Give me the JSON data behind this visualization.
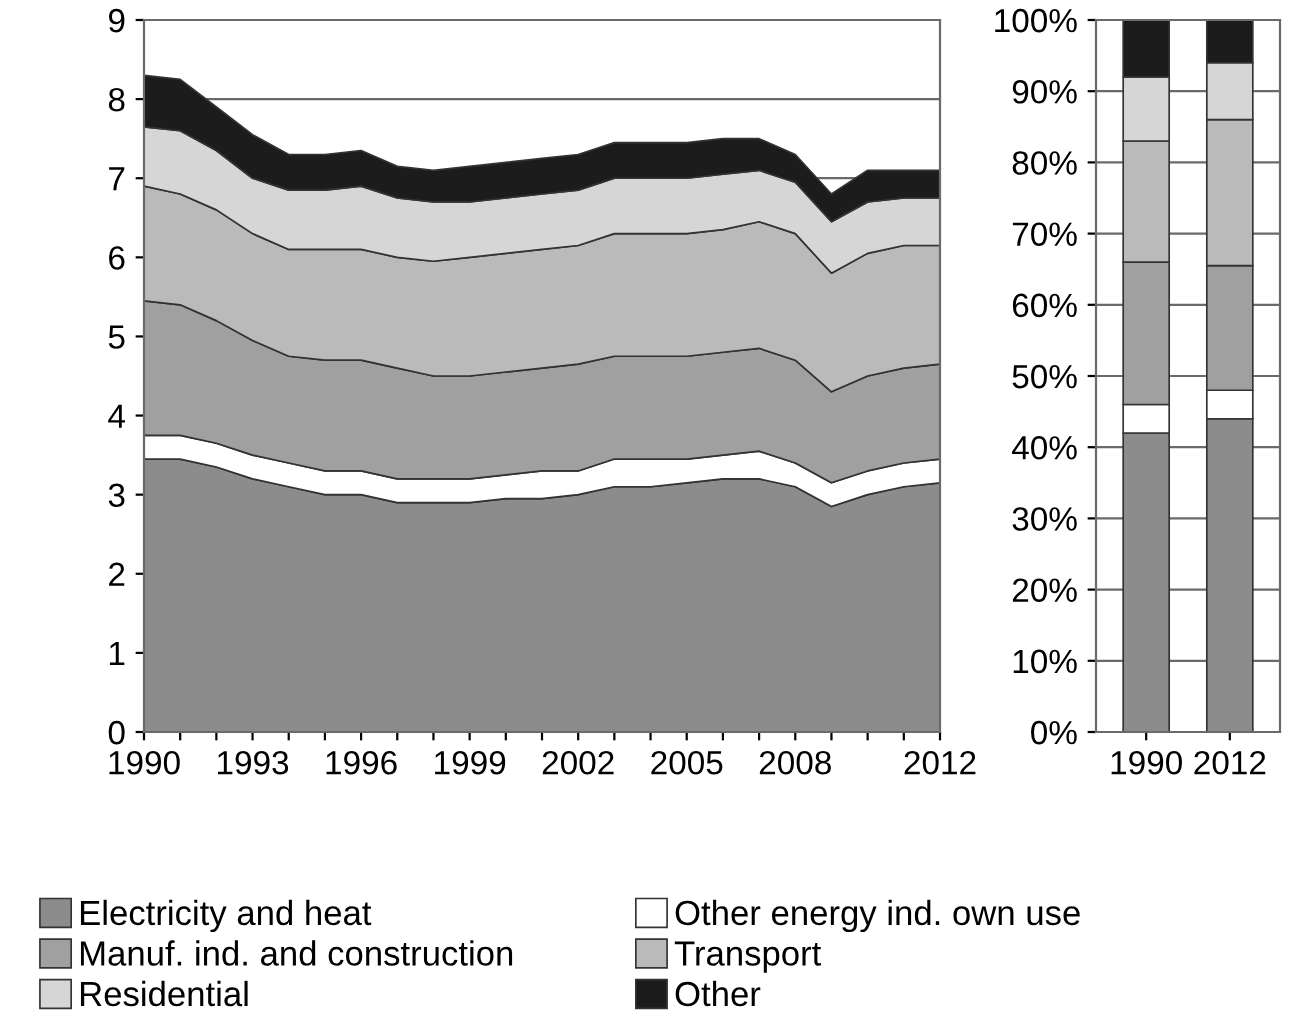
{
  "chart_data": [
    {
      "type": "area",
      "stacked": true,
      "x": [
        1990,
        1991,
        1992,
        1993,
        1994,
        1995,
        1996,
        1997,
        1998,
        1999,
        2000,
        2001,
        2002,
        2003,
        2004,
        2005,
        2006,
        2007,
        2008,
        2009,
        2010,
        2011,
        2012
      ],
      "xlim": [
        1990,
        2012
      ],
      "xticks": [
        1990,
        {
          "value": 1991,
          "label": null
        },
        {
          "value": 1992,
          "label": null
        },
        1993,
        {
          "value": 1994,
          "label": null
        },
        {
          "value": 1995,
          "label": null
        },
        1996,
        {
          "value": 1997,
          "label": null
        },
        {
          "value": 1998,
          "label": null
        },
        1999,
        {
          "value": 2000,
          "label": null
        },
        {
          "value": 2001,
          "label": null
        },
        2002,
        {
          "value": 2003,
          "label": null
        },
        {
          "value": 2004,
          "label": null
        },
        2005,
        {
          "value": 2006,
          "label": null
        },
        {
          "value": 2007,
          "label": null
        },
        2008,
        {
          "value": 2009,
          "label": null
        },
        {
          "value": 2010,
          "label": null
        },
        {
          "value": 2011,
          "label": null
        },
        2012
      ],
      "ylim": [
        0,
        9
      ],
      "yticks": [
        0,
        1,
        2,
        3,
        4,
        5,
        6,
        7,
        8,
        9
      ],
      "grid": "y",
      "legend": "bottom",
      "series": [
        {
          "name": "Electricity and heat",
          "color": "#8c8c8c",
          "values": [
            3.45,
            3.45,
            3.35,
            3.2,
            3.1,
            3.0,
            3.0,
            2.9,
            2.9,
            2.9,
            2.95,
            2.95,
            3.0,
            3.1,
            3.1,
            3.15,
            3.2,
            3.2,
            3.1,
            2.85,
            3.0,
            3.1,
            3.15
          ]
        },
        {
          "name": "Other energy ind. own use",
          "color": "#ffffff",
          "values": [
            0.3,
            0.3,
            0.3,
            0.3,
            0.3,
            0.3,
            0.3,
            0.3,
            0.3,
            0.3,
            0.3,
            0.35,
            0.3,
            0.35,
            0.35,
            0.3,
            0.3,
            0.35,
            0.3,
            0.3,
            0.3,
            0.3,
            0.3
          ]
        },
        {
          "name": "Manuf. ind. and construction",
          "color": "#a0a0a0",
          "values": [
            1.7,
            1.65,
            1.55,
            1.45,
            1.35,
            1.4,
            1.4,
            1.4,
            1.3,
            1.3,
            1.3,
            1.3,
            1.35,
            1.3,
            1.3,
            1.3,
            1.3,
            1.3,
            1.3,
            1.15,
            1.2,
            1.2,
            1.2
          ]
        },
        {
          "name": "Transport",
          "color": "#bababa",
          "values": [
            1.45,
            1.4,
            1.4,
            1.35,
            1.35,
            1.4,
            1.4,
            1.4,
            1.45,
            1.5,
            1.5,
            1.5,
            1.5,
            1.55,
            1.55,
            1.55,
            1.55,
            1.6,
            1.6,
            1.5,
            1.55,
            1.55,
            1.5
          ]
        },
        {
          "name": "Residential",
          "color": "#d6d6d6",
          "values": [
            0.75,
            0.8,
            0.75,
            0.7,
            0.75,
            0.75,
            0.8,
            0.75,
            0.75,
            0.7,
            0.7,
            0.7,
            0.7,
            0.7,
            0.7,
            0.7,
            0.7,
            0.65,
            0.65,
            0.65,
            0.65,
            0.6,
            0.6
          ]
        },
        {
          "name": "Other",
          "color": "#1c1c1c",
          "values": [
            0.65,
            0.65,
            0.55,
            0.55,
            0.45,
            0.45,
            0.45,
            0.4,
            0.4,
            0.45,
            0.45,
            0.45,
            0.45,
            0.45,
            0.45,
            0.45,
            0.45,
            0.4,
            0.35,
            0.35,
            0.4,
            0.35,
            0.35
          ]
        }
      ]
    },
    {
      "type": "bar",
      "stacked": true,
      "categories": [
        "1990",
        "2012"
      ],
      "ylim": [
        0,
        100
      ],
      "yticks": [
        {
          "value": 0,
          "label": "0%"
        },
        {
          "value": 10,
          "label": "10%"
        },
        {
          "value": 20,
          "label": "20%"
        },
        {
          "value": 30,
          "label": "30%"
        },
        {
          "value": 40,
          "label": "40%"
        },
        {
          "value": 50,
          "label": "50%"
        },
        {
          "value": 60,
          "label": "60%"
        },
        {
          "value": 70,
          "label": "70%"
        },
        {
          "value": 80,
          "label": "80%"
        },
        {
          "value": 90,
          "label": "90%"
        },
        {
          "value": 100,
          "label": "100%"
        }
      ],
      "grid": "y",
      "series": [
        {
          "color": "#8c8c8c",
          "values": [
            42,
            44
          ]
        },
        {
          "color": "#ffffff",
          "values": [
            4,
            4
          ]
        },
        {
          "color": "#a0a0a0",
          "values": [
            20,
            17.5
          ]
        },
        {
          "color": "#bababa",
          "values": [
            17,
            20.5
          ]
        },
        {
          "color": "#d6d6d6",
          "values": [
            9,
            8
          ]
        },
        {
          "color": "#1c1c1c",
          "values": [
            8,
            6
          ]
        }
      ]
    }
  ]
}
